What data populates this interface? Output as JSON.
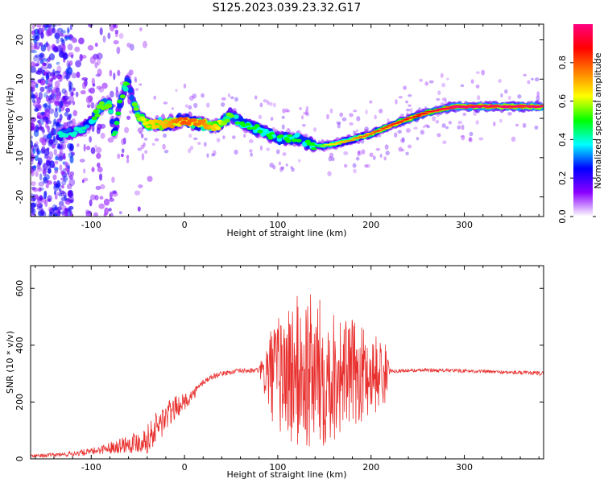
{
  "title": "S125.2023.039.23.32.G17",
  "chart_data": [
    {
      "type": "heatmap",
      "xlabel": "Height of straight line (km)",
      "ylabel": "Frequency (Hz)",
      "xlim": [
        -165,
        385
      ],
      "ylim": [
        -25,
        24
      ],
      "xticks": [
        -100,
        0,
        100,
        200,
        300
      ],
      "yticks": [
        -20,
        -10,
        0,
        10,
        20
      ],
      "colorbar": {
        "label": "Normalized spectral amplitude",
        "range": [
          0,
          1
        ],
        "ticks": [
          0.0,
          0.2,
          0.4,
          0.6,
          0.8
        ],
        "tick_labels": [
          "0.0",
          "0.2",
          "0.4",
          "0.6",
          "0.8"
        ],
        "colors": [
          "#ffffff",
          "#8b00ff",
          "#0000ff",
          "#00ffff",
          "#00ff00",
          "#ffff00",
          "#ff8000",
          "#ff0000",
          "#ff0080"
        ]
      },
      "ridge": {
        "x": [
          -130,
          -110,
          -100,
          -90,
          -80,
          -75,
          -70,
          -65,
          -60,
          -55,
          -50,
          -40,
          -20,
          0,
          20,
          35,
          45,
          50,
          60,
          80,
          100,
          120,
          140,
          150,
          170,
          200,
          230,
          260,
          280,
          290,
          320,
          350,
          385
        ],
        "y": [
          -4,
          -3,
          -1,
          3,
          4,
          -5,
          3,
          7,
          10,
          4,
          1,
          -1.5,
          -1.5,
          -0.5,
          -1.5,
          -2,
          0,
          1,
          -1,
          -3,
          -5,
          -5,
          -7,
          -7,
          -6,
          -4,
          -1,
          1.5,
          2.5,
          3,
          3,
          3,
          3
        ],
        "amplitude": [
          0.35,
          0.35,
          0.45,
          0.5,
          0.5,
          0.4,
          0.45,
          0.5,
          0.45,
          0.5,
          0.5,
          0.6,
          0.65,
          0.75,
          0.7,
          0.6,
          0.5,
          0.5,
          0.45,
          0.45,
          0.45,
          0.45,
          0.45,
          0.55,
          0.65,
          0.75,
          0.8,
          0.85,
          0.9,
          0.95,
          0.95,
          0.95,
          0.95
        ]
      }
    },
    {
      "type": "line",
      "xlabel": "Height of straight line (km)",
      "ylabel": "SNR (10 * v/v)",
      "xlim": [
        -165,
        385
      ],
      "ylim": [
        0,
        680
      ],
      "xticks": [
        -100,
        0,
        100,
        200,
        300
      ],
      "yticks": [
        0,
        200,
        400,
        600
      ],
      "color": "#e8312f",
      "envelope": {
        "x": [
          -165,
          -130,
          -100,
          -80,
          -60,
          -50,
          -40,
          -30,
          -20,
          -10,
          0,
          10,
          20,
          30,
          40,
          50,
          60,
          70,
          80,
          85,
          90,
          100,
          110,
          120,
          130,
          140,
          150,
          160,
          170,
          180,
          190,
          200,
          210,
          215,
          220,
          230,
          260,
          300,
          340,
          385
        ],
        "mean": [
          10,
          15,
          25,
          40,
          55,
          60,
          70,
          110,
          145,
          180,
          200,
          230,
          270,
          290,
          300,
          305,
          310,
          310,
          312,
          300,
          300,
          300,
          300,
          300,
          300,
          300,
          300,
          300,
          300,
          300,
          300,
          300,
          300,
          300,
          310,
          310,
          312,
          310,
          305,
          300
        ],
        "spread": [
          5,
          8,
          12,
          20,
          35,
          40,
          50,
          60,
          60,
          40,
          30,
          20,
          12,
          10,
          8,
          8,
          8,
          8,
          10,
          80,
          150,
          200,
          260,
          280,
          290,
          280,
          260,
          240,
          200,
          190,
          170,
          150,
          130,
          110,
          8,
          6,
          6,
          6,
          6,
          8
        ]
      }
    }
  ]
}
